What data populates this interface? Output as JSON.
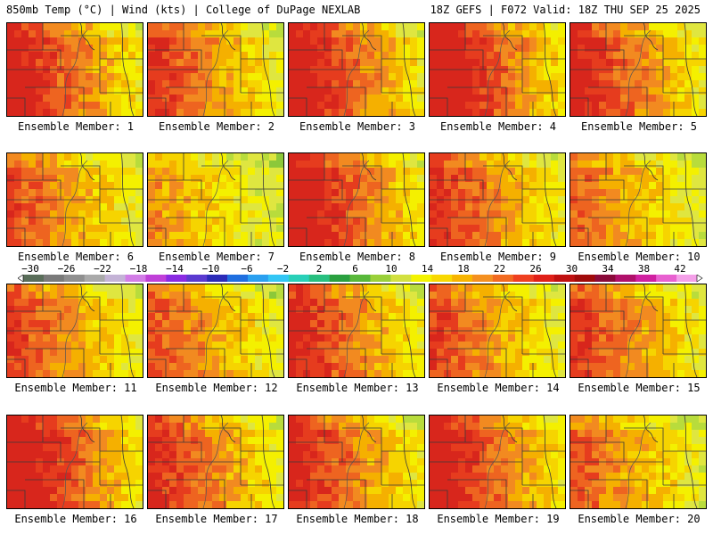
{
  "header": {
    "left": "850mb Temp (°C) | Wind (kts) | College of DuPage NEXLAB",
    "right": "18Z GEFS | F072 Valid: 18Z THU SEP 25 2025"
  },
  "panels": [
    {
      "label": "Ensemble Member: 1",
      "warmth": 0.78
    },
    {
      "label": "Ensemble Member: 2",
      "warmth": 0.66
    },
    {
      "label": "Ensemble Member: 3",
      "warmth": 0.8
    },
    {
      "label": "Ensemble Member: 4",
      "warmth": 0.86
    },
    {
      "label": "Ensemble Member: 5",
      "warmth": 0.74
    },
    {
      "label": "Ensemble Member: 6",
      "warmth": 0.62
    },
    {
      "label": "Ensemble Member: 7",
      "warmth": 0.45
    },
    {
      "label": "Ensemble Member: 8",
      "warmth": 0.82
    },
    {
      "label": "Ensemble Member: 9",
      "warmth": 0.68
    },
    {
      "label": "Ensemble Member: 10",
      "warmth": 0.55
    },
    {
      "label": "Ensemble Member: 11",
      "warmth": 0.64
    },
    {
      "label": "Ensemble Member: 12",
      "warmth": 0.6
    },
    {
      "label": "Ensemble Member: 13",
      "warmth": 0.72
    },
    {
      "label": "Ensemble Member: 14",
      "warmth": 0.63
    },
    {
      "label": "Ensemble Member: 15",
      "warmth": 0.66
    },
    {
      "label": "Ensemble Member: 16",
      "warmth": 0.84
    },
    {
      "label": "Ensemble Member: 17",
      "warmth": 0.7
    },
    {
      "label": "Ensemble Member: 18",
      "warmth": 0.72
    },
    {
      "label": "Ensemble Member: 19",
      "warmth": 0.8
    },
    {
      "label": "Ensemble Member: 20",
      "warmth": 0.58
    }
  ],
  "colorbar": {
    "ticks": [
      "−30",
      "−26",
      "−22",
      "−18",
      "−14",
      "−10",
      "−6",
      "−2",
      "2",
      "6",
      "10",
      "14",
      "18",
      "22",
      "26",
      "30",
      "34",
      "38",
      "42"
    ],
    "colors": [
      "#5a6e5a",
      "#7a7a7a",
      "#8f8f8f",
      "#a9a9a9",
      "#c4b3d6",
      "#d27de6",
      "#c040d8",
      "#8a2be2",
      "#5a3ad0",
      "#2b2bb8",
      "#1f6fe0",
      "#2aa0f0",
      "#33c6f5",
      "#29d0b8",
      "#28c080",
      "#2aa040",
      "#58b83a",
      "#9ad03a",
      "#d2e040",
      "#f3f300",
      "#f8d800",
      "#f7b400",
      "#f49020",
      "#f26a20",
      "#ef4020",
      "#e02018",
      "#c01010",
      "#a00a0a",
      "#8a0a3a",
      "#b0106a",
      "#d020a0",
      "#e860d0",
      "#f4a0e8"
    ]
  }
}
